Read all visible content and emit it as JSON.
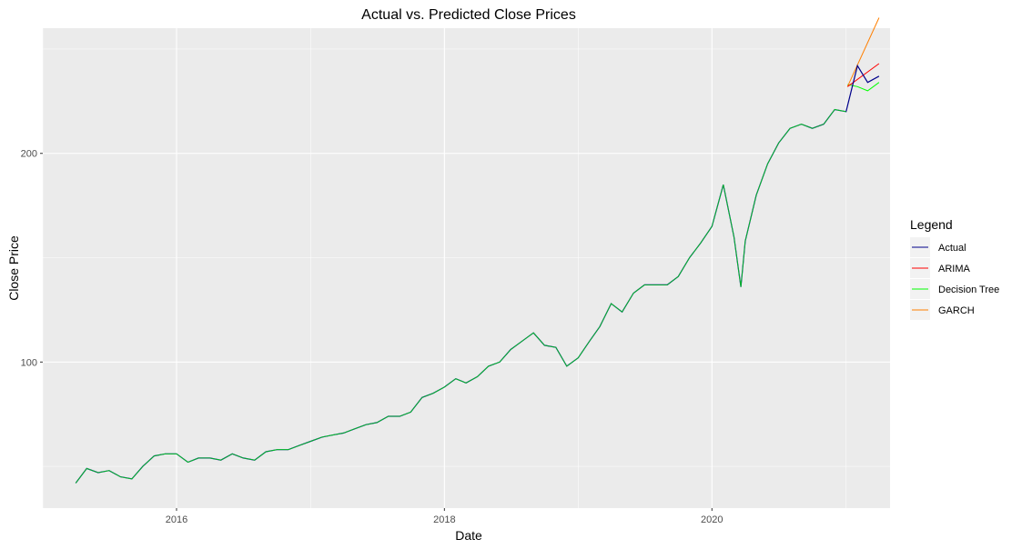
{
  "chart_data": {
    "type": "line",
    "title": "Actual vs. Predicted Close Prices",
    "xlabel": "Date",
    "ylabel": "Close Price",
    "xlim": [
      "2015-01-01",
      "2021-05-01"
    ],
    "ylim": [
      30,
      260
    ],
    "x_ticks": [
      "2016",
      "2018",
      "2020"
    ],
    "y_ticks": [
      100,
      200
    ],
    "grid": true,
    "legend": {
      "title": "Legend",
      "placement": "right"
    },
    "series": [
      {
        "name": "Actual",
        "color": "#00008B",
        "points": [
          [
            "2015-04-01",
            42
          ],
          [
            "2015-05-01",
            49
          ],
          [
            "2015-06-01",
            47
          ],
          [
            "2015-07-01",
            48
          ],
          [
            "2015-08-01",
            45
          ],
          [
            "2015-09-01",
            44
          ],
          [
            "2015-10-01",
            50
          ],
          [
            "2015-11-01",
            55
          ],
          [
            "2015-12-01",
            56
          ],
          [
            "2016-01-01",
            56
          ],
          [
            "2016-02-01",
            52
          ],
          [
            "2016-03-01",
            54
          ],
          [
            "2016-04-01",
            54
          ],
          [
            "2016-05-01",
            53
          ],
          [
            "2016-06-01",
            56
          ],
          [
            "2016-07-01",
            54
          ],
          [
            "2016-08-01",
            53
          ],
          [
            "2016-09-01",
            57
          ],
          [
            "2016-10-01",
            58
          ],
          [
            "2016-11-01",
            58
          ],
          [
            "2016-12-01",
            60
          ],
          [
            "2017-01-01",
            62
          ],
          [
            "2017-02-01",
            64
          ],
          [
            "2017-03-01",
            65
          ],
          [
            "2017-04-01",
            66
          ],
          [
            "2017-05-01",
            68
          ],
          [
            "2017-06-01",
            70
          ],
          [
            "2017-07-01",
            71
          ],
          [
            "2017-08-01",
            74
          ],
          [
            "2017-09-01",
            74
          ],
          [
            "2017-10-01",
            76
          ],
          [
            "2017-11-01",
            83
          ],
          [
            "2017-12-01",
            85
          ],
          [
            "2018-01-01",
            88
          ],
          [
            "2018-02-01",
            92
          ],
          [
            "2018-03-01",
            90
          ],
          [
            "2018-04-01",
            93
          ],
          [
            "2018-05-01",
            98
          ],
          [
            "2018-06-01",
            100
          ],
          [
            "2018-07-01",
            106
          ],
          [
            "2018-08-01",
            110
          ],
          [
            "2018-09-01",
            114
          ],
          [
            "2018-10-01",
            108
          ],
          [
            "2018-11-01",
            107
          ],
          [
            "2018-12-01",
            98
          ],
          [
            "2019-01-01",
            102
          ],
          [
            "2019-02-01",
            110
          ],
          [
            "2019-03-01",
            117
          ],
          [
            "2019-04-01",
            128
          ],
          [
            "2019-05-01",
            124
          ],
          [
            "2019-06-01",
            133
          ],
          [
            "2019-07-01",
            137
          ],
          [
            "2019-08-01",
            137
          ],
          [
            "2019-09-01",
            137
          ],
          [
            "2019-10-01",
            141
          ],
          [
            "2019-11-01",
            150
          ],
          [
            "2019-12-01",
            157
          ],
          [
            "2020-01-01",
            165
          ],
          [
            "2020-02-01",
            185
          ],
          [
            "2020-03-01",
            160
          ],
          [
            "2020-03-20",
            136
          ],
          [
            "2020-04-01",
            158
          ],
          [
            "2020-05-01",
            180
          ],
          [
            "2020-06-01",
            195
          ],
          [
            "2020-07-01",
            205
          ],
          [
            "2020-08-01",
            212
          ],
          [
            "2020-09-01",
            214
          ],
          [
            "2020-10-01",
            212
          ],
          [
            "2020-11-01",
            214
          ],
          [
            "2020-12-01",
            221
          ],
          [
            "2021-01-01",
            220
          ],
          [
            "2021-02-01",
            242
          ],
          [
            "2021-03-01",
            234
          ],
          [
            "2021-04-01",
            237
          ]
        ]
      },
      {
        "name": "ARIMA",
        "color": "#FF0000",
        "points": [
          [
            "2021-01-05",
            232
          ],
          [
            "2021-04-01",
            243
          ]
        ]
      },
      {
        "name": "Decision Tree",
        "color": "#00FF00",
        "points": [
          [
            "2021-01-05",
            233
          ],
          [
            "2021-02-01",
            232
          ],
          [
            "2021-03-01",
            230
          ],
          [
            "2021-04-01",
            234
          ]
        ]
      },
      {
        "name": "GARCH",
        "color": "#FF7F00",
        "points": [
          [
            "2021-01-05",
            232
          ],
          [
            "2021-04-01",
            265
          ]
        ]
      }
    ]
  }
}
